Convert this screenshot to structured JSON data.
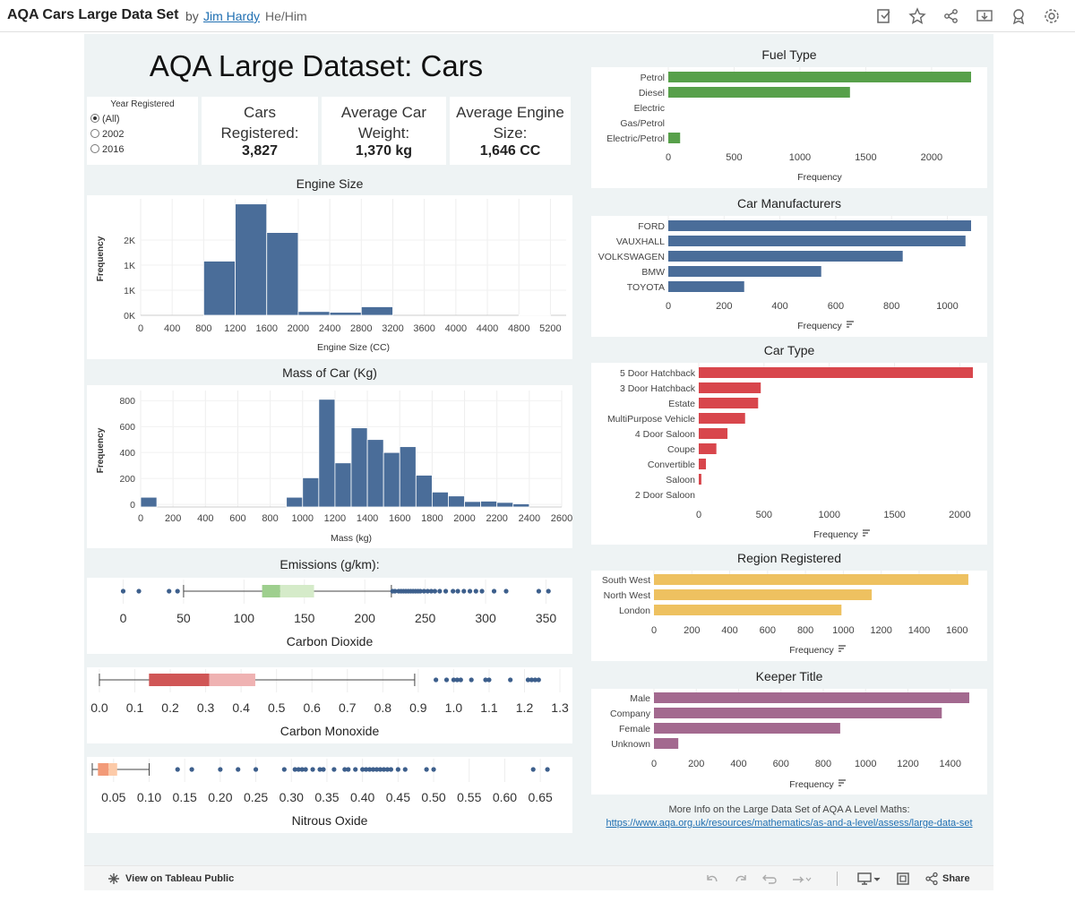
{
  "header": {
    "title": "AQA Cars Large Data Set",
    "by": "by",
    "author": "Jim Hardy",
    "pronouns": "He/Him",
    "icons": [
      "edit-copy-icon",
      "star-icon",
      "share-network-icon",
      "download-icon",
      "badge-icon",
      "gear-icon"
    ]
  },
  "dashboard": {
    "title": "AQA Large Dataset: Cars",
    "filter": {
      "label": "Year Registered",
      "options": [
        "(All)",
        "2002",
        "2016"
      ],
      "selected": "(All)"
    },
    "kpis": [
      {
        "label": "Cars Registered:",
        "value": "3,827"
      },
      {
        "label": "Average Car Weight:",
        "value": "1,370 kg"
      },
      {
        "label": "Average Engine Size:",
        "value": "1,646 CC"
      }
    ],
    "more_info": "More Info on the Large Data Set of AQA A Level Maths:",
    "more_link": "https://www.aqa.org.uk/resources/mathematics/as-and-a-level/assess/large-data-set"
  },
  "toolbar": {
    "view_on_tableau": "View on Tableau Public",
    "share": "Share"
  },
  "colors": {
    "blue": "#4a6d99",
    "green": "#57a04a",
    "red": "#d8464c",
    "yellow": "#eec160",
    "purple": "#a3698f",
    "co2_box_dark": "#9ecf8e",
    "co2_box_light": "#d5ebc9",
    "co_box_dark": "#d05656",
    "co_box_light": "#efb2b2",
    "no_box_dark": "#f29a78",
    "no_box_light": "#fccaa8"
  },
  "chart_data": [
    {
      "id": "fuel",
      "type": "bar",
      "orientation": "horizontal",
      "title": "Fuel Type",
      "categories": [
        "Petrol",
        "Diesel",
        "Electric",
        "Gas/Petrol",
        "Electric/Petrol"
      ],
      "values": [
        2300,
        1380,
        0,
        0,
        90
      ],
      "xlabel": "Frequency",
      "ticks": [
        0,
        500,
        1000,
        1500,
        2000
      ],
      "xlim": [
        0,
        2300
      ],
      "color": "#57a04a",
      "sort_icon": false
    },
    {
      "id": "manufacturers",
      "type": "bar",
      "orientation": "horizontal",
      "title": "Car Manufacturers",
      "categories": [
        "FORD",
        "VAUXHALL",
        "VOLKSWAGEN",
        "BMW",
        "TOYOTA"
      ],
      "values": [
        1085,
        1065,
        840,
        548,
        272
      ],
      "xlabel": "Frequency",
      "ticks": [
        0,
        200,
        400,
        600,
        800,
        1000
      ],
      "xlim": [
        0,
        1085
      ],
      "color": "#4a6d99",
      "sort_icon": true
    },
    {
      "id": "cartype",
      "type": "bar",
      "orientation": "horizontal",
      "title": "Car Type",
      "categories": [
        "5 Door Hatchback",
        "3 Door Hatchback",
        "Estate",
        "MultiPurpose Vehicle",
        "4 Door Saloon",
        "Coupe",
        "Convertible",
        "Saloon",
        "2 Door Saloon"
      ],
      "values": [
        2100,
        475,
        455,
        355,
        220,
        135,
        55,
        20,
        0
      ],
      "xlabel": "Frequency",
      "ticks": [
        0,
        500,
        1000,
        1500,
        2000
      ],
      "xlim": [
        0,
        2100
      ],
      "color": "#d8464c",
      "sort_icon": true
    },
    {
      "id": "region",
      "type": "bar",
      "orientation": "horizontal",
      "title": "Region Registered",
      "categories": [
        "South West",
        "North West",
        "London"
      ],
      "values": [
        1660,
        1150,
        990
      ],
      "xlabel": "Frequency",
      "ticks": [
        0,
        200,
        400,
        600,
        800,
        1000,
        1200,
        1400,
        1600
      ],
      "xlim": [
        0,
        1665
      ],
      "color": "#eec160",
      "sort_icon": true
    },
    {
      "id": "keeper",
      "type": "bar",
      "orientation": "horizontal",
      "title": "Keeper Title",
      "categories": [
        "Male",
        "Company",
        "Female",
        "Unknown"
      ],
      "values": [
        1490,
        1360,
        880,
        115
      ],
      "xlabel": "Frequency",
      "ticks": [
        0,
        200,
        400,
        600,
        800,
        1000,
        1200,
        1400
      ],
      "xlim": [
        0,
        1490
      ],
      "color": "#a3698f",
      "sort_icon": true
    },
    {
      "id": "engine",
      "type": "bar",
      "subtype": "histogram",
      "title": "Engine Size",
      "xlabel": "Engine Size (CC)",
      "ylabel": "Frequency",
      "bin_width": 400,
      "bins": [
        {
          "x0": 800,
          "value": 1080
        },
        {
          "x0": 1200,
          "value": 2220
        },
        {
          "x0": 1600,
          "value": 1650
        },
        {
          "x0": 2000,
          "value": 75
        },
        {
          "x0": 2400,
          "value": 60
        },
        {
          "x0": 2800,
          "value": 170
        },
        {
          "x0": 4800,
          "value": 10
        }
      ],
      "xticks": [
        0,
        400,
        800,
        1200,
        1600,
        2000,
        2400,
        2800,
        3200,
        3600,
        4000,
        4400,
        4800,
        5200
      ],
      "yticks": [
        "0K",
        "1K",
        "1K",
        "2K"
      ],
      "ytick_values": [
        0,
        500,
        1000,
        1500
      ],
      "xlim": [
        0,
        5400
      ],
      "ylim": [
        0,
        2250
      ],
      "color": "#4a6d99"
    },
    {
      "id": "mass",
      "type": "bar",
      "subtype": "histogram",
      "title": "Mass of Car (Kg)",
      "xlabel": "Mass (kg)",
      "ylabel": "Frequency",
      "bin_width": 100,
      "bins": [
        {
          "x0": 0,
          "value": 55
        },
        {
          "x0": 900,
          "value": 55
        },
        {
          "x0": 1000,
          "value": 205
        },
        {
          "x0": 1100,
          "value": 810
        },
        {
          "x0": 1200,
          "value": 320
        },
        {
          "x0": 1300,
          "value": 590
        },
        {
          "x0": 1400,
          "value": 500
        },
        {
          "x0": 1500,
          "value": 400
        },
        {
          "x0": 1600,
          "value": 445
        },
        {
          "x0": 1700,
          "value": 225
        },
        {
          "x0": 1800,
          "value": 95
        },
        {
          "x0": 1900,
          "value": 65
        },
        {
          "x0": 2000,
          "value": 22
        },
        {
          "x0": 2100,
          "value": 25
        },
        {
          "x0": 2200,
          "value": 15
        },
        {
          "x0": 2300,
          "value": 4
        }
      ],
      "xticks": [
        0,
        200,
        400,
        600,
        800,
        1000,
        1200,
        1400,
        1600,
        1800,
        2000,
        2200,
        2400,
        2600
      ],
      "yticks": [
        "0",
        "200",
        "400",
        "600",
        "800"
      ],
      "ytick_values": [
        0,
        200,
        400,
        600,
        800
      ],
      "xlim": [
        0,
        2600
      ],
      "ylim": [
        -20,
        850
      ],
      "color": "#4a6d99"
    },
    {
      "id": "co2",
      "type": "boxplot",
      "title": "Emissions (g/km):",
      "label": "Carbon Dioxide",
      "min": 50,
      "q1": 115,
      "median": 130,
      "q3": 158,
      "max": 222,
      "outliers": [
        0,
        13,
        38,
        45,
        223,
        225,
        228,
        230,
        232,
        234,
        236,
        238,
        240,
        242,
        244,
        246,
        249,
        252,
        255,
        258,
        262,
        267,
        273,
        277,
        282,
        287,
        292,
        297,
        307,
        317,
        344,
        352
      ],
      "ticks": [
        0,
        50,
        100,
        150,
        200,
        250,
        300,
        350
      ],
      "xlim": [
        -10,
        360
      ],
      "box_dark": "#9ecf8e",
      "box_light": "#d5ebc9"
    },
    {
      "id": "co",
      "type": "boxplot",
      "title": "",
      "label": "Carbon Monoxide",
      "min": 0,
      "q1": 0.14,
      "median": 0.31,
      "q3": 0.44,
      "max": 0.89,
      "outliers": [
        0.95,
        0.98,
        1.0,
        1.01,
        1.02,
        1.05,
        1.09,
        1.1,
        1.16,
        1.21,
        1.22,
        1.23,
        1.24
      ],
      "ticks": [
        "0.0",
        "0.1",
        "0.2",
        "0.3",
        "0.4",
        "0.5",
        "0.6",
        "0.7",
        "0.8",
        "0.9",
        "1.0",
        "1.1",
        "1.2",
        "1.3"
      ],
      "tick_values": [
        0,
        0.1,
        0.2,
        0.3,
        0.4,
        0.5,
        0.6,
        0.7,
        0.8,
        0.9,
        1.0,
        1.1,
        1.2,
        1.3
      ],
      "xlim": [
        -0.01,
        1.31
      ],
      "box_dark": "#d05656",
      "box_light": "#efb2b2"
    },
    {
      "id": "no",
      "type": "boxplot",
      "title": "",
      "label": "Nitrous Oxide",
      "min": 0.02,
      "q1": 0.028,
      "median": 0.043,
      "q3": 0.055,
      "max": 0.1,
      "outliers": [
        0.14,
        0.16,
        0.2,
        0.225,
        0.25,
        0.29,
        0.305,
        0.31,
        0.315,
        0.32,
        0.33,
        0.34,
        0.345,
        0.36,
        0.375,
        0.38,
        0.39,
        0.4,
        0.405,
        0.41,
        0.415,
        0.42,
        0.425,
        0.43,
        0.435,
        0.44,
        0.45,
        0.46,
        0.49,
        0.5,
        0.64,
        0.66
      ],
      "ticks": [
        "0.05",
        "0.10",
        "0.15",
        "0.20",
        "0.25",
        "0.30",
        "0.35",
        "0.40",
        "0.45",
        "0.50",
        "0.55",
        "0.60",
        "0.65"
      ],
      "tick_values": [
        0.05,
        0.1,
        0.15,
        0.2,
        0.25,
        0.3,
        0.35,
        0.4,
        0.45,
        0.5,
        0.55,
        0.6,
        0.65
      ],
      "xlim": [
        0.015,
        0.675
      ],
      "box_dark": "#f29a78",
      "box_light": "#fccaa8"
    }
  ]
}
